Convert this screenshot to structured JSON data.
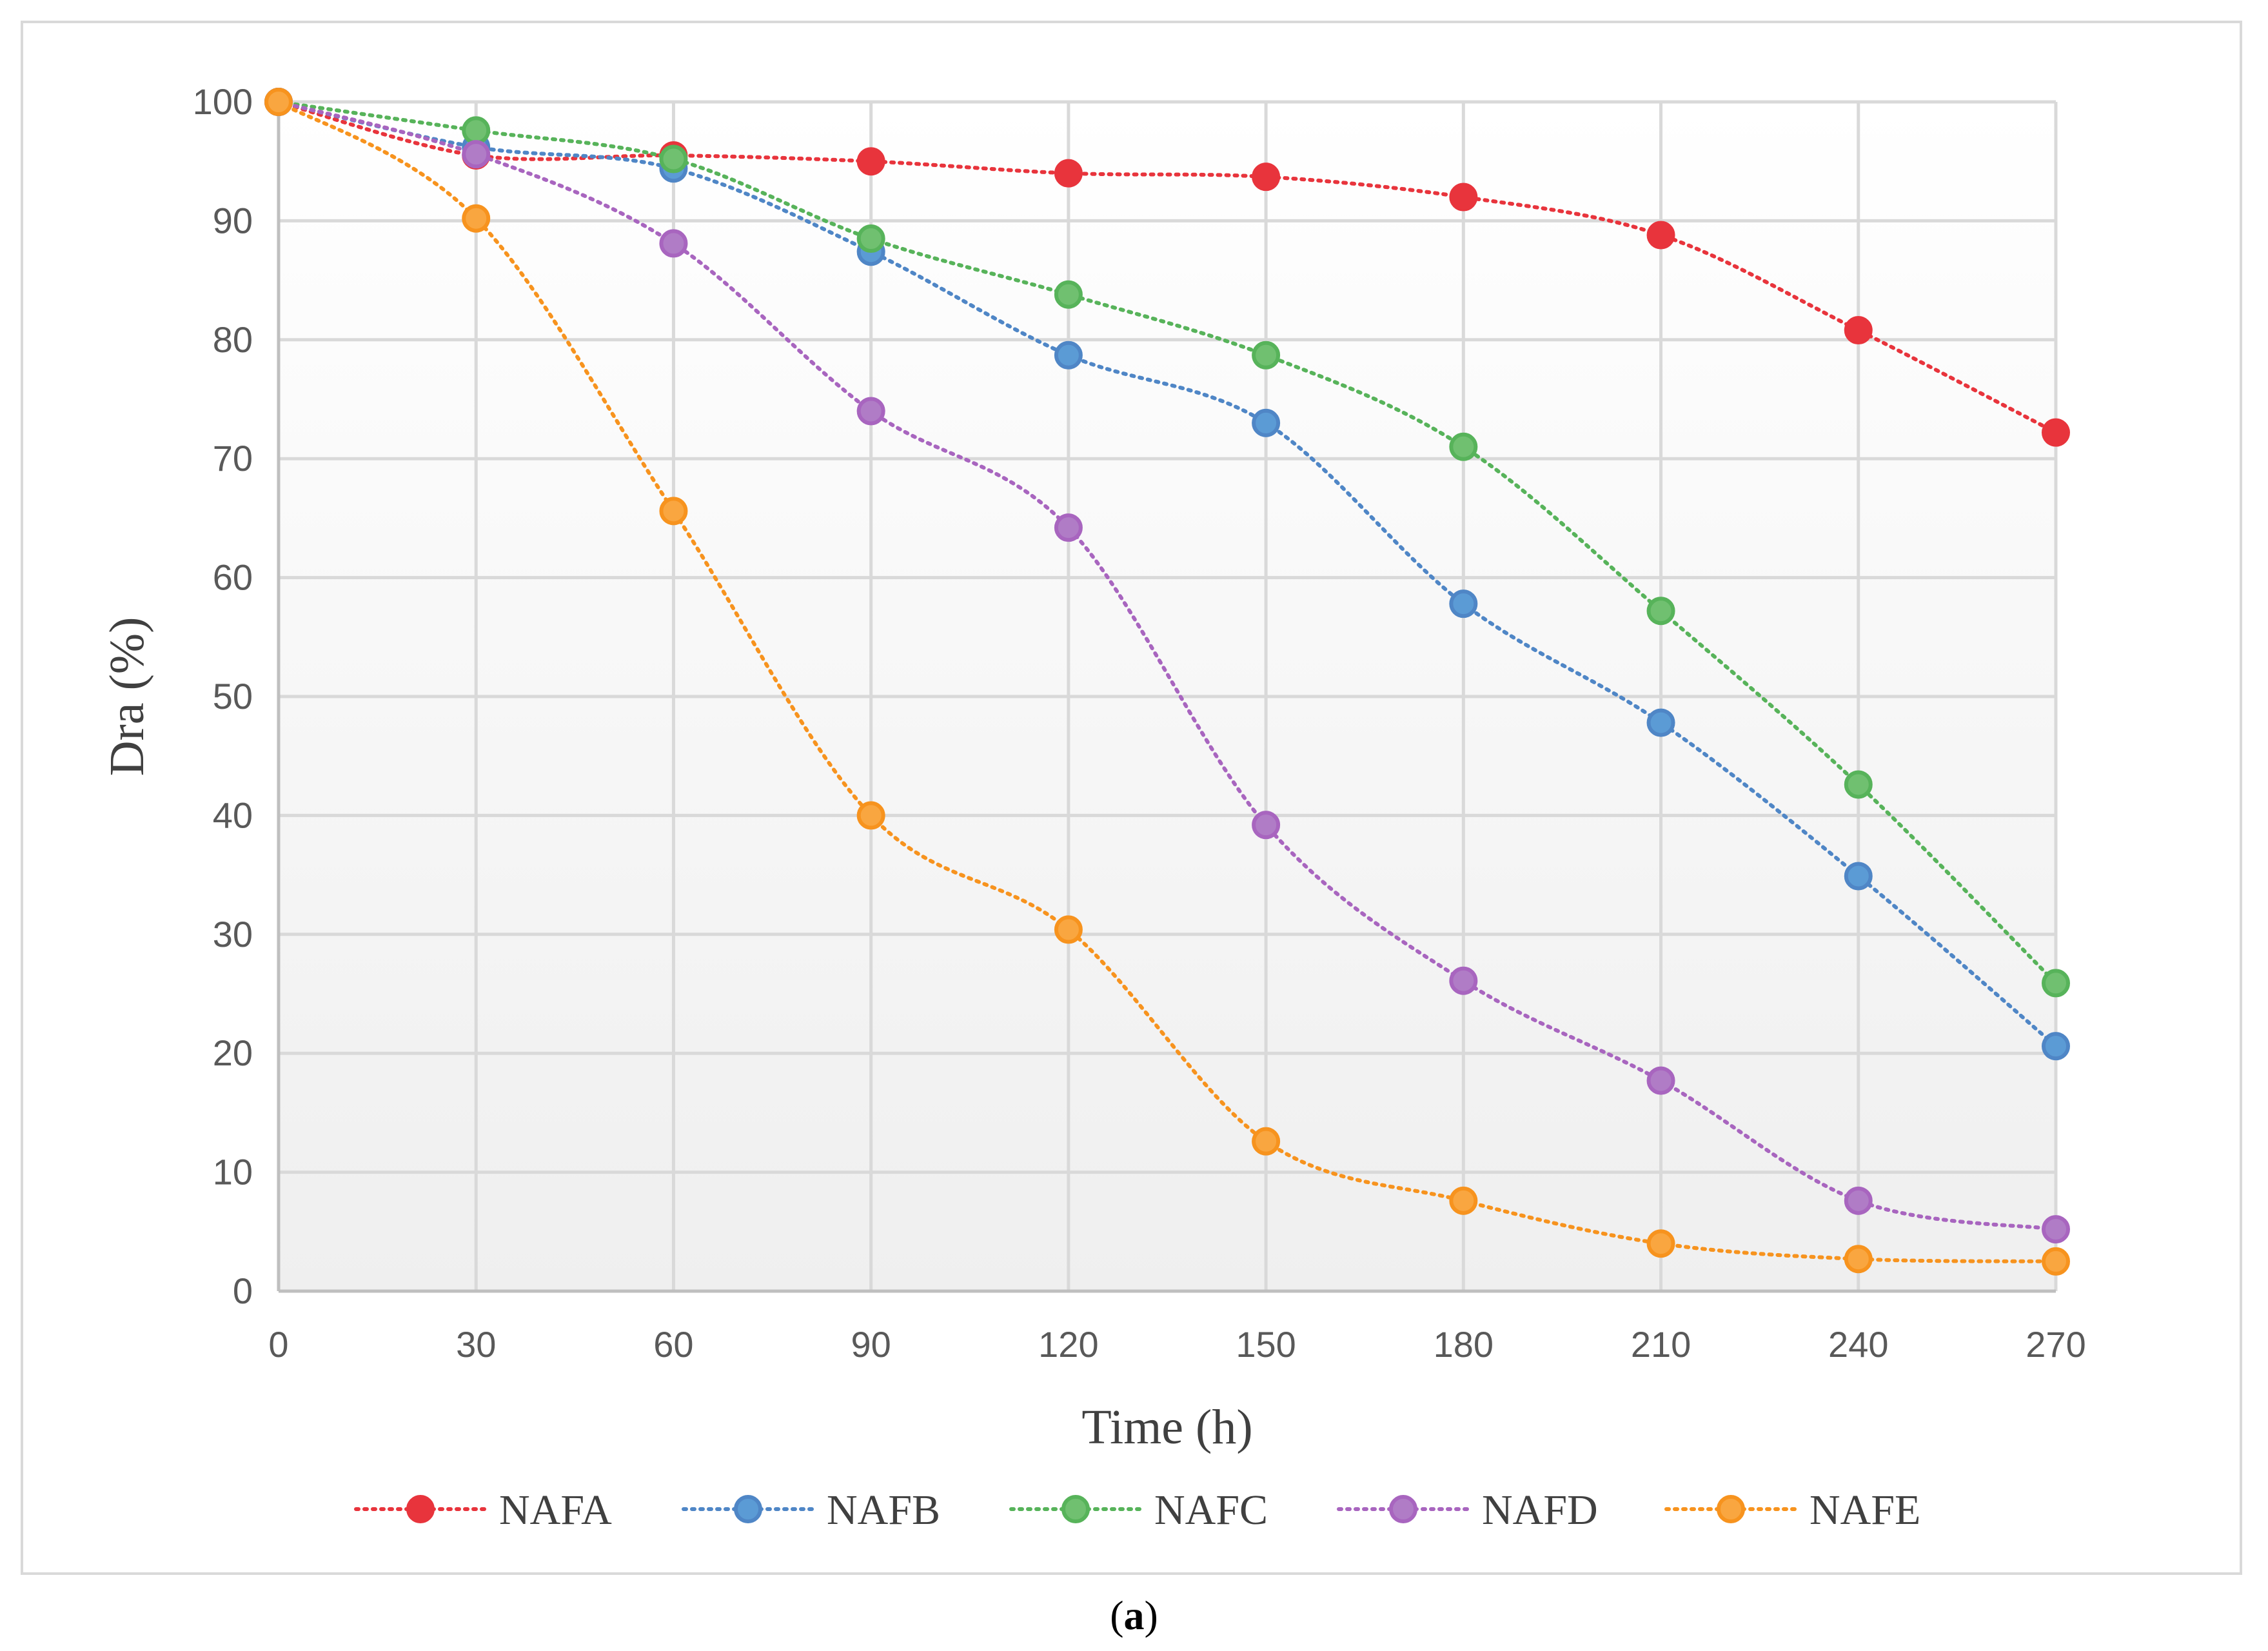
{
  "chart_data": {
    "type": "line",
    "title": "",
    "xlabel": "Time (h)",
    "ylabel": "Dra (%)",
    "x": [
      0,
      30,
      60,
      90,
      120,
      150,
      180,
      210,
      240,
      270
    ],
    "xlim": [
      0,
      270
    ],
    "ylim": [
      0,
      100
    ],
    "yticks": [
      0,
      10,
      20,
      30,
      40,
      50,
      60,
      70,
      80,
      90,
      100
    ],
    "grid": true,
    "legend_position": "bottom",
    "series": [
      {
        "name": "NAFA",
        "color": "#e8343c",
        "fill": "#e8343c",
        "values": [
          100,
          95.5,
          95.5,
          95,
          94,
          93.7,
          92,
          88.8,
          80.8,
          72.2
        ]
      },
      {
        "name": "NAFB",
        "color": "#4f86c6",
        "fill": "#5b9bd5",
        "values": [
          100,
          96.2,
          94.4,
          87.4,
          78.7,
          73,
          57.8,
          47.8,
          34.9,
          20.6
        ]
      },
      {
        "name": "NAFC",
        "color": "#57b35a",
        "fill": "#70c070",
        "values": [
          100,
          97.6,
          95.2,
          88.5,
          83.8,
          78.7,
          71,
          57.2,
          42.6,
          25.9
        ]
      },
      {
        "name": "NAFD",
        "color": "#a865bf",
        "fill": "#b07cc6",
        "values": [
          100,
          95.6,
          88.1,
          74,
          64.2,
          39.2,
          26.1,
          17.7,
          7.6,
          5.2
        ]
      },
      {
        "name": "NAFE",
        "color": "#f7931e",
        "fill": "#f9a640",
        "values": [
          100,
          90.2,
          65.6,
          40,
          30.4,
          12.6,
          7.6,
          4,
          2.7,
          2.5
        ]
      }
    ]
  },
  "caption": {
    "label": "a"
  }
}
